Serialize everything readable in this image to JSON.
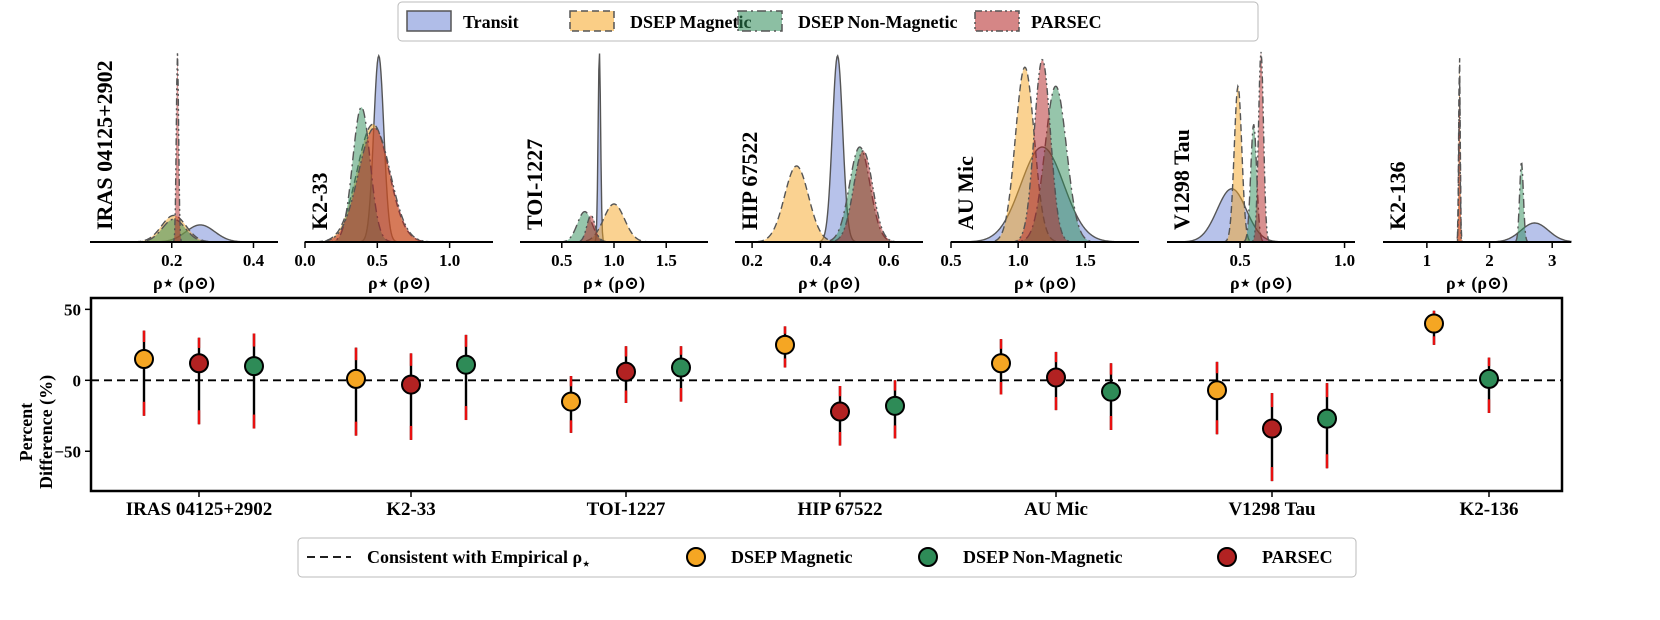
{
  "colors": {
    "transit": "#6f86d6",
    "dsep_magnetic": "#f5a623",
    "dsep_non_magnetic": "#2e8b57",
    "parsec": "#b22222",
    "error_bar": "#000000",
    "error_tip": "#e81010"
  },
  "top_legend": [
    {
      "label": "Transit",
      "key": "transit",
      "line": "solid"
    },
    {
      "label": "DSEP Magnetic",
      "key": "dsep_magnetic",
      "line": "dashed"
    },
    {
      "label": "DSEP Non-Magnetic",
      "key": "dsep_non_magnetic",
      "line": "dashdot"
    },
    {
      "label": "PARSEC",
      "key": "parsec",
      "line": "dashdotdot"
    }
  ],
  "bottom_legend": [
    {
      "label": "Consistent with Empirical ρ",
      "marker": "dashed-line",
      "subscript": "⋆"
    },
    {
      "label": "DSEP Magnetic",
      "marker": "circle",
      "key": "dsep_magnetic"
    },
    {
      "label": "DSEP Non-Magnetic",
      "marker": "circle",
      "key": "dsep_non_magnetic"
    },
    {
      "label": "PARSEC",
      "marker": "circle",
      "key": "parsec"
    }
  ],
  "chart_data": [
    {
      "type": "area",
      "description": "posterior density of stellar density for each star",
      "xlabel": "ρ⋆ (ρ⊙)",
      "panels": [
        {
          "star": "IRAS 04125+2902",
          "xlim": [
            0.0,
            0.46
          ],
          "ticks": [
            "0.2",
            "0.4"
          ],
          "tick_values": [
            0.2,
            0.4
          ],
          "series": [
            {
              "key": "transit",
              "mu": 0.27,
              "sigma": 0.035,
              "height": 0.09
            },
            {
              "key": "dsep_magnetic",
              "mu": 0.205,
              "sigma": 0.03,
              "height": 0.14
            },
            {
              "key": "dsep_non_magnetic",
              "mu": 0.205,
              "sigma": 0.028,
              "height": 0.12
            },
            {
              "key": "parsec",
              "mu": 0.214,
              "sigma": 0.0028,
              "height": 1.0
            }
          ]
        },
        {
          "star": "K2-33",
          "xlim": [
            0.0,
            1.3
          ],
          "ticks": [
            "0.0",
            "0.5",
            "1.0"
          ],
          "tick_values": [
            0.0,
            0.5,
            1.0
          ],
          "series": [
            {
              "key": "transit",
              "mu": 0.51,
              "sigma": 0.035,
              "height": 0.98
            },
            {
              "key": "dsep_magnetic",
              "mu": 0.47,
              "sigma": 0.11,
              "height": 0.62
            },
            {
              "key": "dsep_non_magnetic",
              "mu": 0.39,
              "sigma": 0.06,
              "height": 0.71
            },
            {
              "key": "parsec",
              "mu": 0.48,
              "sigma": 0.11,
              "height": 0.6
            }
          ]
        },
        {
          "star": "TOI-1227",
          "xlim": [
            0.1,
            1.9
          ],
          "ticks": [
            "0.5",
            "1.0",
            "1.5"
          ],
          "tick_values": [
            0.5,
            1.0,
            1.5
          ],
          "series": [
            {
              "key": "transit",
              "mu": 0.86,
              "sigma": 0.012,
              "height": 1.0
            },
            {
              "key": "dsep_magnetic",
              "mu": 1.0,
              "sigma": 0.1,
              "height": 0.2
            },
            {
              "key": "dsep_non_magnetic",
              "mu": 0.72,
              "sigma": 0.07,
              "height": 0.16
            },
            {
              "key": "parsec",
              "mu": 0.78,
              "sigma": 0.04,
              "height": 0.14
            }
          ]
        },
        {
          "star": "HIP 67522",
          "xlim": [
            0.15,
            0.7
          ],
          "ticks": [
            "0.2",
            "0.4",
            "0.6"
          ],
          "tick_values": [
            0.2,
            0.4,
            0.6
          ],
          "series": [
            {
              "key": "transit",
              "mu": 0.45,
              "sigma": 0.015,
              "height": 0.98
            },
            {
              "key": "dsep_magnetic",
              "mu": 0.33,
              "sigma": 0.035,
              "height": 0.4
            },
            {
              "key": "dsep_non_magnetic",
              "mu": 0.515,
              "sigma": 0.03,
              "height": 0.5
            },
            {
              "key": "parsec",
              "mu": 0.525,
              "sigma": 0.028,
              "height": 0.48
            }
          ]
        },
        {
          "star": "AU Mic",
          "xlim": [
            0.5,
            1.9
          ],
          "ticks": [
            "0.5",
            "1.0",
            "1.5"
          ],
          "tick_values": [
            0.5,
            1.0,
            1.5
          ],
          "series": [
            {
              "key": "transit",
              "mu": 1.18,
              "sigma": 0.16,
              "height": 0.5
            },
            {
              "key": "dsep_magnetic",
              "mu": 1.05,
              "sigma": 0.07,
              "height": 0.92
            },
            {
              "key": "dsep_non_magnetic",
              "mu": 1.28,
              "sigma": 0.08,
              "height": 0.82
            },
            {
              "key": "parsec",
              "mu": 1.18,
              "sigma": 0.06,
              "height": 0.96
            }
          ]
        },
        {
          "star": "V1298 Tau",
          "xlim": [
            0.15,
            1.05
          ],
          "ticks": [
            "0.5",
            "1.0"
          ],
          "tick_values": [
            0.5,
            1.0
          ],
          "series": [
            {
              "key": "transit",
              "mu": 0.46,
              "sigma": 0.07,
              "height": 0.28
            },
            {
              "key": "dsep_magnetic",
              "mu": 0.49,
              "sigma": 0.018,
              "height": 0.82
            },
            {
              "key": "dsep_non_magnetic",
              "mu": 0.565,
              "sigma": 0.014,
              "height": 0.62
            },
            {
              "key": "parsec",
              "mu": 0.6,
              "sigma": 0.012,
              "height": 1.0
            }
          ]
        },
        {
          "star": "K2-136",
          "xlim": [
            0.3,
            3.3
          ],
          "ticks": [
            "1",
            "2",
            "3"
          ],
          "tick_values": [
            1,
            2,
            3
          ],
          "series": [
            {
              "key": "transit",
              "mu": 2.72,
              "sigma": 0.22,
              "height": 0.1
            },
            {
              "key": "dsep_magnetic",
              "mu": 1.52,
              "sigma": 0.012,
              "height": 1.0
            },
            {
              "key": "dsep_non_magnetic",
              "mu": 2.51,
              "sigma": 0.03,
              "height": 0.42
            },
            {
              "key": "parsec",
              "mu": 1.52,
              "sigma": 0.01,
              "height": 0.9
            }
          ]
        }
      ]
    },
    {
      "type": "scatter",
      "ylabel_line1": "Percent",
      "ylabel_line2": "Difference (%)",
      "ylim": [
        -78,
        58
      ],
      "yticks": [
        50,
        0,
        -50
      ],
      "ytick_labels": [
        "50",
        "0",
        "−50"
      ],
      "reference_line": 0,
      "categories": [
        "IRAS 04125+2902",
        "K2-33",
        "TOI-1227",
        "HIP 67522",
        "AU Mic",
        "V1298 Tau",
        "K2-136"
      ],
      "points": [
        {
          "star": "IRAS 04125+2902",
          "key": "dsep_magnetic",
          "offset": -1,
          "value": 15,
          "err_low": 40,
          "err_high": 20
        },
        {
          "star": "IRAS 04125+2902",
          "key": "parsec",
          "offset": 0,
          "value": 12,
          "err_low": 43,
          "err_high": 18
        },
        {
          "star": "IRAS 04125+2902",
          "key": "dsep_non_magnetic",
          "offset": 1,
          "value": 10,
          "err_low": 44,
          "err_high": 23
        },
        {
          "star": "K2-33",
          "key": "dsep_magnetic",
          "offset": -1,
          "value": 1,
          "err_low": 40,
          "err_high": 22
        },
        {
          "star": "K2-33",
          "key": "parsec",
          "offset": 0,
          "value": -3,
          "err_low": 39,
          "err_high": 22
        },
        {
          "star": "K2-33",
          "key": "dsep_non_magnetic",
          "offset": 1,
          "value": 11,
          "err_low": 39,
          "err_high": 21
        },
        {
          "star": "TOI-1227",
          "key": "dsep_magnetic",
          "offset": -1,
          "value": -15,
          "err_low": 22,
          "err_high": 18
        },
        {
          "star": "TOI-1227",
          "key": "parsec",
          "offset": 0,
          "value": 6,
          "err_low": 22,
          "err_high": 18
        },
        {
          "star": "TOI-1227",
          "key": "dsep_non_magnetic",
          "offset": 1,
          "value": 9,
          "err_low": 24,
          "err_high": 15
        },
        {
          "star": "HIP 67522",
          "key": "dsep_magnetic",
          "offset": -1,
          "value": 25,
          "err_low": 16,
          "err_high": 13
        },
        {
          "star": "HIP 67522",
          "key": "parsec",
          "offset": 0,
          "value": -22,
          "err_low": 24,
          "err_high": 18
        },
        {
          "star": "HIP 67522",
          "key": "dsep_non_magnetic",
          "offset": 1,
          "value": -18,
          "err_low": 23,
          "err_high": 18
        },
        {
          "star": "AU Mic",
          "key": "dsep_magnetic",
          "offset": -1,
          "value": 12,
          "err_low": 22,
          "err_high": 17
        },
        {
          "star": "AU Mic",
          "key": "parsec",
          "offset": 0,
          "value": 2,
          "err_low": 23,
          "err_high": 18
        },
        {
          "star": "AU Mic",
          "key": "dsep_non_magnetic",
          "offset": 1,
          "value": -8,
          "err_low": 27,
          "err_high": 20
        },
        {
          "star": "V1298 Tau",
          "key": "dsep_magnetic",
          "offset": -1,
          "value": -7,
          "err_low": 31,
          "err_high": 20
        },
        {
          "star": "V1298 Tau",
          "key": "parsec",
          "offset": 0,
          "value": -34,
          "err_low": 37,
          "err_high": 25
        },
        {
          "star": "V1298 Tau",
          "key": "dsep_non_magnetic",
          "offset": 1,
          "value": -27,
          "err_low": 35,
          "err_high": 25
        },
        {
          "star": "K2-136",
          "key": "dsep_magnetic",
          "offset": -1,
          "value": 40,
          "err_low": 15,
          "err_high": 9
        },
        {
          "star": "K2-136",
          "key": "dsep_non_magnetic",
          "offset": 0,
          "value": 1,
          "err_low": 24,
          "err_high": 15
        }
      ]
    }
  ]
}
